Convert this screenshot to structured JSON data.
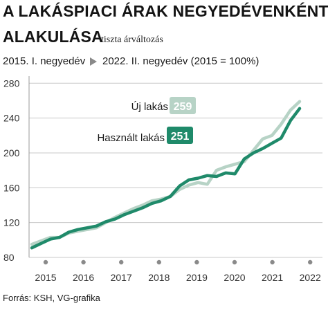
{
  "header": {
    "title_line1": "A LAKÁSPIACI ÁRAK NEGYEDÉVENKÉNTI",
    "title_line2": "ALAKULÁSA",
    "subtitle": "tiszta árváltozás",
    "period_start": "2015. I. negyedév",
    "period_end": "2022. II. negyedév (2015 = 100%)"
  },
  "source": "Forrás: KSH, VG-grafika",
  "colors": {
    "new_series": "#b7d3c6",
    "used_series": "#1f8a6a",
    "axis_text": "#333333",
    "grid": "#c8c8c8"
  },
  "chart_data": {
    "type": "line",
    "title": "A LAKÁSPIACI ÁRAK NEGYEDÉVENKÉNTI ALAKULÁSA",
    "subtitle": "tiszta árváltozás",
    "xlabel": "",
    "ylabel": "",
    "ylim": [
      80,
      285
    ],
    "yticks": [
      80,
      120,
      160,
      200,
      240,
      280
    ],
    "xticks": [
      "2015",
      "2016",
      "2017",
      "2018",
      "2019",
      "2020",
      "2021",
      "2022"
    ],
    "grid": "horizontal",
    "categories": [
      "2015 I",
      "2015 II",
      "2015 III",
      "2015 IV",
      "2016 I",
      "2016 II",
      "2016 III",
      "2016 IV",
      "2017 I",
      "2017 II",
      "2017 III",
      "2017 IV",
      "2018 I",
      "2018 II",
      "2018 III",
      "2018 IV",
      "2019 I",
      "2019 II",
      "2019 III",
      "2019 IV",
      "2020 I",
      "2020 II",
      "2020 III",
      "2020 IV",
      "2021 I",
      "2021 II",
      "2021 III",
      "2021 IV",
      "2022 I",
      "2022 II"
    ],
    "series": [
      {
        "name": "Új lakás",
        "color": "#b7d3c6",
        "final_label": "259",
        "values": [
          95,
          99,
          103,
          103,
          108,
          110,
          112,
          114,
          120,
          126,
          131,
          136,
          140,
          145,
          147,
          150,
          158,
          163,
          166,
          164,
          180,
          184,
          187,
          190,
          203,
          216,
          220,
          233,
          249,
          259
        ]
      },
      {
        "name": "Használt lakás",
        "color": "#1f8a6a",
        "final_label": "251",
        "values": [
          91,
          96,
          101,
          103,
          109,
          112,
          114,
          116,
          121,
          124,
          129,
          133,
          137,
          142,
          145,
          150,
          162,
          169,
          171,
          174,
          173,
          177,
          176,
          193,
          200,
          205,
          211,
          217,
          237,
          251
        ]
      }
    ]
  }
}
